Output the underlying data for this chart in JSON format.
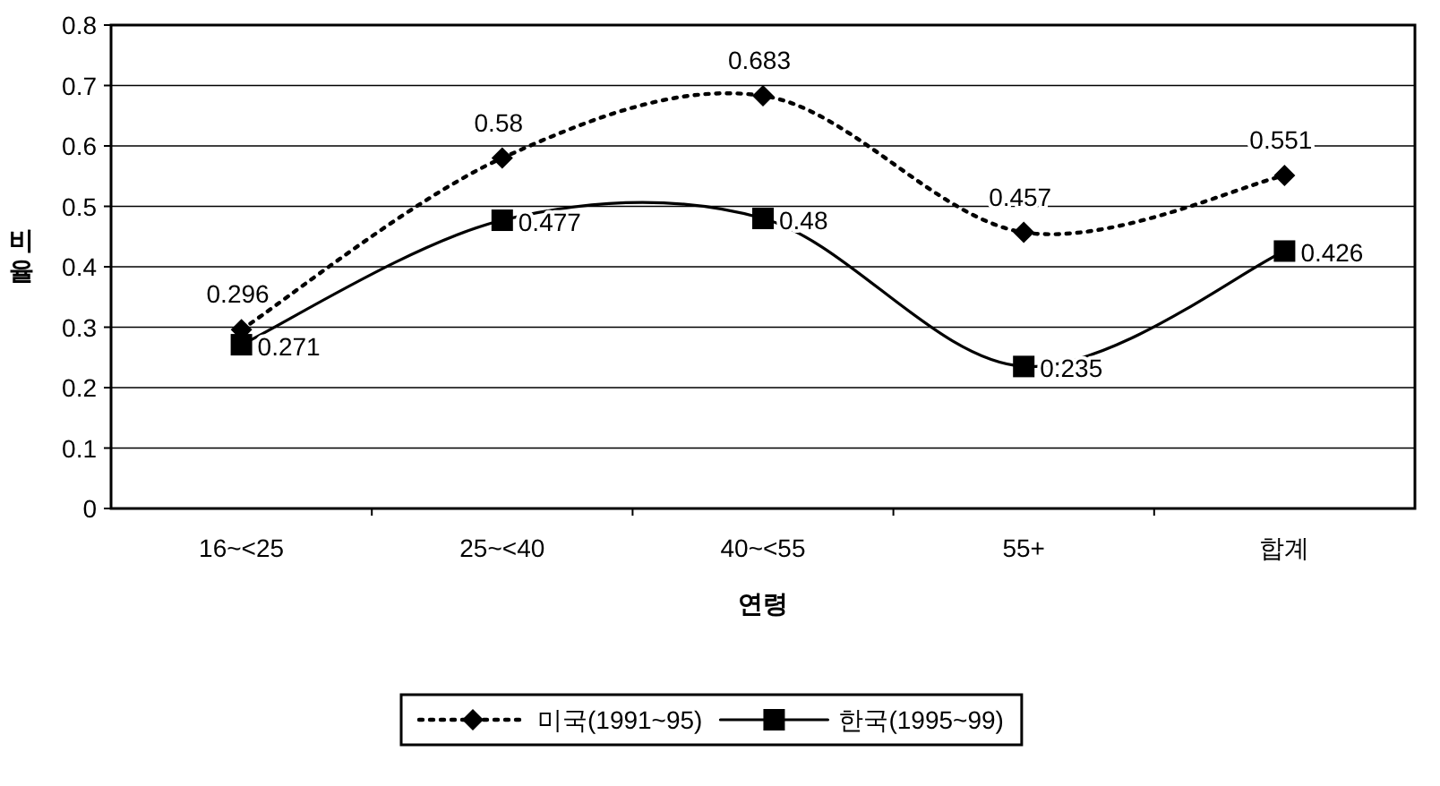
{
  "chart_data": {
    "type": "line",
    "xlabel": "연령",
    "ylabel": "비율",
    "categories": [
      "16~<25",
      "25~<40",
      "40~<55",
      "55+",
      "합계"
    ],
    "series": [
      {
        "name": "미국(1991~95)",
        "color": "#000000",
        "values": [
          0.296,
          0.58,
          0.683,
          0.457,
          0.551
        ],
        "marker": "diamond",
        "line_style": "dotted"
      },
      {
        "name": "한국(1995~99)",
        "color": "#000000",
        "values": [
          0.271,
          0.477,
          0.48,
          0.235,
          0.426
        ],
        "marker": "square",
        "line_style": "solid"
      }
    ],
    "ylim": [
      0,
      0.8
    ],
    "yticks": [
      0,
      0.1,
      0.2,
      0.3,
      0.4,
      0.5,
      0.6,
      0.7,
      0.8
    ],
    "grid": "y",
    "legend": "bottom",
    "data_labels": true
  }
}
